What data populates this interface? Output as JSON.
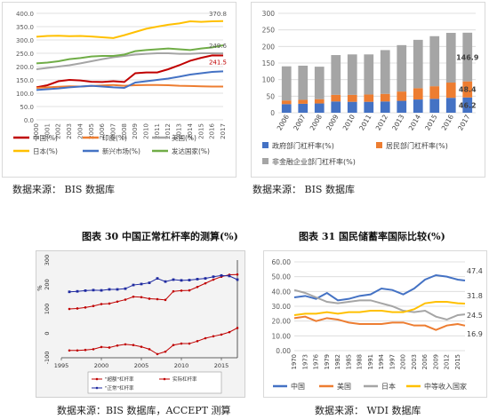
{
  "captions": {
    "source_tl": "数据来源： BIS 数据库",
    "source_tr": "数据来源： BIS 数据库",
    "title_bl": "图表 30 中国正常杠杆率的测算(%)",
    "title_br": "图表 31 国民储蓄率国际比较(%)",
    "source_bl": "数据来源：BIS 数据库，ACCEPT 测算",
    "source_br": "数据来源： WDI 数据库"
  },
  "chart_data": [
    {
      "id": "tl",
      "type": "line",
      "title": "",
      "ylim": [
        0,
        400
      ],
      "yticks": [
        "0.0",
        "50.0",
        "100.0",
        "150.0",
        "200.0",
        "250.0",
        "300.0",
        "350.0",
        "400.0"
      ],
      "x": [
        "2000",
        "2001",
        "2002",
        "2003",
        "2004",
        "2005",
        "2006",
        "2007",
        "2008",
        "2009",
        "2010",
        "2011",
        "2012",
        "2013",
        "2014",
        "2015",
        "2016",
        "2017"
      ],
      "grid": true,
      "legend": "bottom",
      "series": [
        {
          "name": "中国(%)",
          "color": "#c00000",
          "values": [
            122,
            130,
            145,
            150,
            148,
            143,
            142,
            145,
            142,
            175,
            178,
            178,
            190,
            205,
            222,
            233,
            242,
            241.5
          ]
        },
        {
          "name": "印度(%)",
          "color": "#ed7d31",
          "values": [
            120,
            122,
            124,
            126,
            125,
            127,
            129,
            131,
            128,
            130,
            131,
            131,
            130,
            128,
            127,
            126,
            125,
            125
          ]
        },
        {
          "name": "美国(%)",
          "color": "#a5a5a5",
          "values": [
            190,
            195,
            200,
            205,
            212,
            220,
            228,
            235,
            240,
            245,
            248,
            250,
            250,
            248,
            248,
            250,
            250,
            249.6
          ]
        },
        {
          "name": "日本(%)",
          "color": "#ffc000",
          "values": [
            312,
            315,
            316,
            314,
            315,
            313,
            310,
            307,
            318,
            330,
            342,
            350,
            357,
            362,
            370,
            368,
            370,
            370.8
          ]
        },
        {
          "name": "新兴市场(%)",
          "color": "#4472c4",
          "values": [
            112,
            115,
            118,
            122,
            125,
            128,
            125,
            122,
            120,
            140,
            145,
            150,
            155,
            162,
            170,
            175,
            180,
            182
          ]
        },
        {
          "name": "发达国家(%)",
          "color": "#70ad47",
          "values": [
            212,
            215,
            220,
            228,
            232,
            238,
            240,
            240,
            245,
            258,
            262,
            265,
            268,
            265,
            262,
            268,
            272,
            280
          ]
        }
      ],
      "annotations": [
        "370.8",
        "249.6",
        "241.5"
      ]
    },
    {
      "id": "tr",
      "type": "bar",
      "title": "",
      "ylim": [
        0,
        300
      ],
      "yticks": [
        "0",
        "50",
        "100",
        "150",
        "200",
        "250",
        "300"
      ],
      "categories": [
        "2006",
        "2007",
        "2008",
        "2009",
        "2010",
        "2011",
        "2012",
        "2013",
        "2014",
        "2015",
        "2016",
        "2017"
      ],
      "stacked": true,
      "grid": true,
      "legend": "bottom",
      "series": [
        {
          "name": "政府部门杠杆率(%)",
          "color": "#4472c4",
          "values": [
            26,
            27,
            28,
            34,
            33,
            33,
            34,
            36,
            40,
            42,
            45,
            46.2
          ]
        },
        {
          "name": "居民部门杠杆率(%)",
          "color": "#ed7d31",
          "values": [
            11,
            12,
            13,
            20,
            21,
            22,
            23,
            28,
            34,
            38,
            46,
            48.4
          ]
        },
        {
          "name": "非金融企业部门杠杆率(%)",
          "color": "#a5a5a5",
          "values": [
            103,
            103,
            98,
            120,
            122,
            121,
            132,
            140,
            146,
            151,
            150,
            146.9
          ]
        }
      ],
      "annotations": [
        "146.9",
        "48.4",
        "46.2"
      ]
    },
    {
      "id": "bl",
      "type": "line",
      "title": "",
      "ylabel": "%",
      "ylim": [
        -100,
        300
      ],
      "yticks": [
        "-100",
        "0",
        "100",
        "200",
        "300"
      ],
      "xticks": [
        "1995",
        "2000",
        "2005",
        "2010",
        "2015"
      ],
      "xlim": [
        1995,
        2017
      ],
      "legend": "bottom",
      "series": [
        {
          "name": "\"超额\"杠杆率",
          "color": "#c00000",
          "x": [
            1996,
            1997,
            1998,
            1999,
            2000,
            2001,
            2002,
            2003,
            2004,
            2005,
            2006,
            2007,
            2008,
            2009,
            2010,
            2011,
            2012,
            2013,
            2014,
            2015,
            2016,
            2017
          ],
          "values": [
            -70,
            -70,
            -68,
            -65,
            -56,
            -58,
            -50,
            -45,
            -48,
            -55,
            -65,
            -85,
            -75,
            -48,
            -42,
            -42,
            -32,
            -20,
            -12,
            -5,
            5,
            22
          ]
        },
        {
          "name": "实际杠杆率",
          "color": "#c00000",
          "x": [
            1996,
            1997,
            1998,
            1999,
            2000,
            2001,
            2002,
            2003,
            2004,
            2005,
            2006,
            2007,
            2008,
            2009,
            2010,
            2011,
            2012,
            2013,
            2014,
            2015,
            2016,
            2017
          ],
          "values": [
            100,
            102,
            106,
            112,
            120,
            122,
            130,
            138,
            150,
            148,
            142,
            140,
            137,
            172,
            175,
            176,
            190,
            205,
            220,
            232,
            240,
            241
          ]
        },
        {
          "name": "\"正常\"杠杆率",
          "color": "#1f2aa0",
          "x": [
            1996,
            1997,
            1998,
            1999,
            2000,
            2001,
            2002,
            2003,
            2004,
            2005,
            2006,
            2007,
            2008,
            2009,
            2010,
            2011,
            2012,
            2013,
            2014,
            2015,
            2016,
            2017
          ],
          "values": [
            170,
            172,
            175,
            177,
            176,
            180,
            180,
            183,
            198,
            202,
            207,
            225,
            212,
            220,
            217,
            218,
            222,
            225,
            232,
            237,
            235,
            220
          ]
        }
      ]
    },
    {
      "id": "br",
      "type": "line",
      "title": "",
      "ylim": [
        0,
        60
      ],
      "yticks": [
        "0.00",
        "10.00",
        "20.00",
        "30.00",
        "40.00",
        "50.00",
        "60.00"
      ],
      "xticks": [
        "1970",
        "1973",
        "1976",
        "1979",
        "1982",
        "1985",
        "1988",
        "1991",
        "1994",
        "1997",
        "2000",
        "2003",
        "2006",
        "2009",
        "2012",
        "2015"
      ],
      "xlim": [
        1970,
        2017
      ],
      "grid": true,
      "legend": "bottom",
      "series": [
        {
          "name": "中国",
          "color": "#4472c4",
          "x": [
            1970,
            1973,
            1976,
            1979,
            1982,
            1985,
            1988,
            1991,
            1994,
            1997,
            2000,
            2003,
            2006,
            2009,
            2012,
            2015,
            2017
          ],
          "values": [
            36,
            37,
            35,
            39,
            34,
            35,
            37,
            38,
            42,
            41,
            38,
            42,
            48,
            51,
            50,
            48,
            47.4
          ]
        },
        {
          "name": "美国",
          "color": "#ed7d31",
          "x": [
            1970,
            1973,
            1976,
            1979,
            1982,
            1985,
            1988,
            1991,
            1994,
            1997,
            2000,
            2003,
            2006,
            2009,
            2012,
            2015,
            2017
          ],
          "values": [
            22,
            23,
            20,
            22,
            21,
            19,
            18,
            18,
            18,
            19,
            19,
            17,
            17,
            14,
            17,
            18,
            16.9
          ]
        },
        {
          "name": "日本",
          "color": "#a5a5a5",
          "x": [
            1970,
            1973,
            1976,
            1979,
            1982,
            1985,
            1988,
            1991,
            1994,
            1997,
            2000,
            2003,
            2006,
            2009,
            2012,
            2015,
            2017
          ],
          "values": [
            41,
            39,
            36,
            33,
            32,
            33,
            34,
            34,
            32,
            30,
            27,
            26,
            27,
            23,
            21,
            24,
            24.5
          ]
        },
        {
          "name": "中等收入国家",
          "color": "#ffc000",
          "x": [
            1970,
            1973,
            1976,
            1979,
            1982,
            1985,
            1988,
            1991,
            1994,
            1997,
            2000,
            2003,
            2006,
            2009,
            2012,
            2015,
            2017
          ],
          "values": [
            24,
            25,
            25,
            26,
            25,
            26,
            26,
            27,
            27,
            26,
            26,
            28,
            32,
            33,
            33,
            32,
            31.8
          ]
        }
      ],
      "annotations": [
        "47.4",
        "31.8",
        "24.5",
        "16.9"
      ]
    }
  ]
}
